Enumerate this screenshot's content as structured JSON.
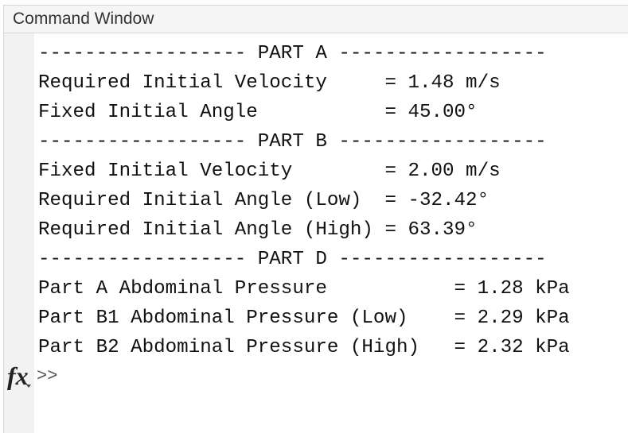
{
  "window": {
    "title": "Command Window"
  },
  "output_lines": [
    "------------------ PART A ------------------",
    "Required Initial Velocity     = 1.48 m/s",
    "Fixed Initial Angle           = 45.00°",
    "------------------ PART B ------------------",
    "Fixed Initial Velocity        = 2.00 m/s",
    "Required Initial Angle (Low)  = -32.42°",
    "Required Initial Angle (High) = 63.39°",
    "------------------ PART D ------------------",
    "Part A Abdominal Pressure           = 1.28 kPa",
    "Part B1 Abdominal Pressure (Low)    = 2.29 kPa",
    "Part B2 Abdominal Pressure (High)   = 2.32 kPa"
  ],
  "prompt": {
    "symbol": ">>",
    "icon": "fx-icon",
    "icon_text": "fx"
  },
  "colors": {
    "title_bar": "#f5f5f5",
    "gutter": "#f2f2f2",
    "text": "#111111"
  }
}
